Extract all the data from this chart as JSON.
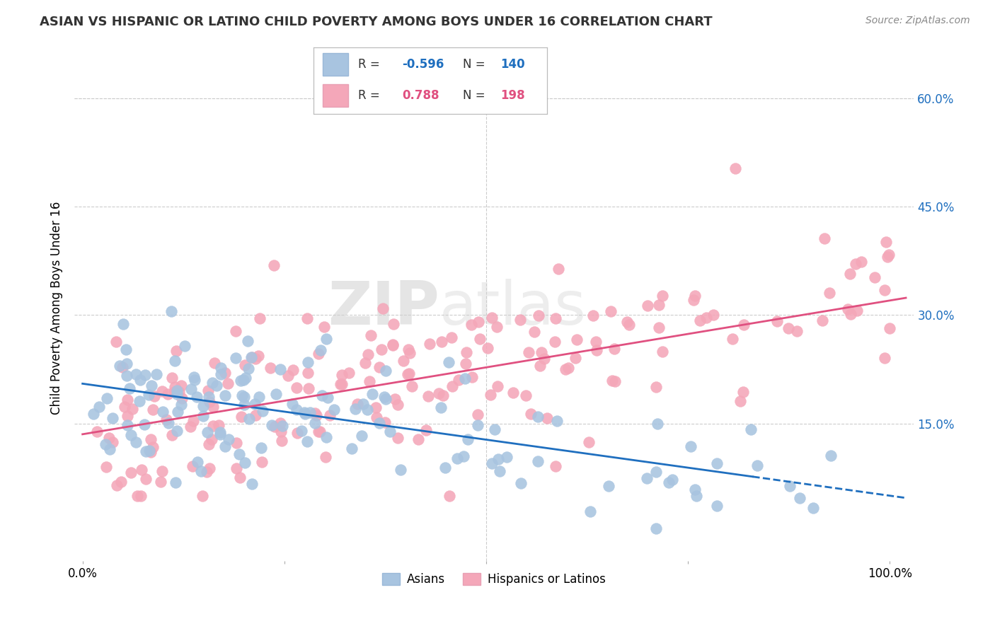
{
  "title": "ASIAN VS HISPANIC OR LATINO CHILD POVERTY AMONG BOYS UNDER 16 CORRELATION CHART",
  "source": "Source: ZipAtlas.com",
  "ylabel": "Child Poverty Among Boys Under 16",
  "ytick_labels": [
    "60.0%",
    "45.0%",
    "30.0%",
    "15.0%"
  ],
  "ytick_values": [
    0.6,
    0.45,
    0.3,
    0.15
  ],
  "legend_labels": [
    "Asians",
    "Hispanics or Latinos"
  ],
  "asian_color": "#a8c4e0",
  "hispanic_color": "#f4a7b9",
  "asian_line_color": "#1f6fbf",
  "hispanic_line_color": "#e05080",
  "asian_R": "-0.596",
  "asian_N": 140,
  "hispanic_R": "0.788",
  "hispanic_N": 198,
  "watermark_ZIP": "ZIP",
  "watermark_atlas": "atlas",
  "asian_seed": 42,
  "hispanic_seed": 99,
  "background_color": "#ffffff",
  "grid_color": "#cccccc",
  "asian_line_intercept": 0.205,
  "asian_line_slope": -0.155,
  "hispanic_line_intercept": 0.135,
  "hispanic_line_slope": 0.185
}
